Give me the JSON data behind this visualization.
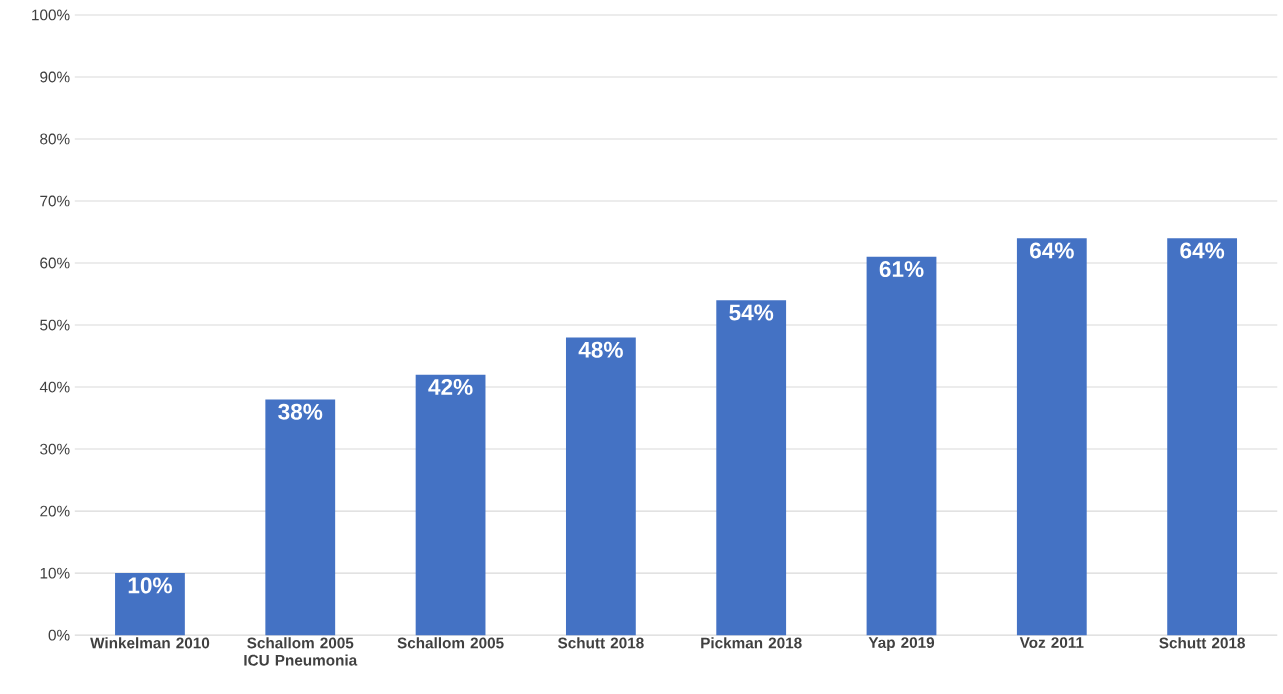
{
  "chart_data": {
    "type": "bar",
    "categories": [
      "Winkelman 2010",
      "Schallom 2005 ICU Pneumonia",
      "Schallom 2005",
      "Schutt 2018",
      "Pickman 2018",
      "Yap 2019",
      "Voz 2011",
      "Schutt 2018"
    ],
    "values": [
      10,
      38,
      42,
      48,
      54,
      61,
      64,
      64
    ],
    "value_labels": [
      "10%",
      "38%",
      "42%",
      "48%",
      "54%",
      "61%",
      "64%",
      "64%"
    ],
    "color": "#4472c4",
    "ylim": [
      0,
      100
    ],
    "yticks": [
      {
        "value": 0,
        "label": "0%"
      },
      {
        "value": 10,
        "label": "10%"
      },
      {
        "value": 20,
        "label": "20%"
      },
      {
        "value": 30,
        "label": "30%"
      },
      {
        "value": 40,
        "label": "40%"
      },
      {
        "value": 50,
        "label": "50%"
      },
      {
        "value": 60,
        "label": "60%"
      },
      {
        "value": 70,
        "label": "70%"
      },
      {
        "value": 80,
        "label": "80%"
      },
      {
        "value": 90,
        "label": "90%"
      },
      {
        "value": 100,
        "label": "100%"
      }
    ],
    "grid": "y"
  }
}
